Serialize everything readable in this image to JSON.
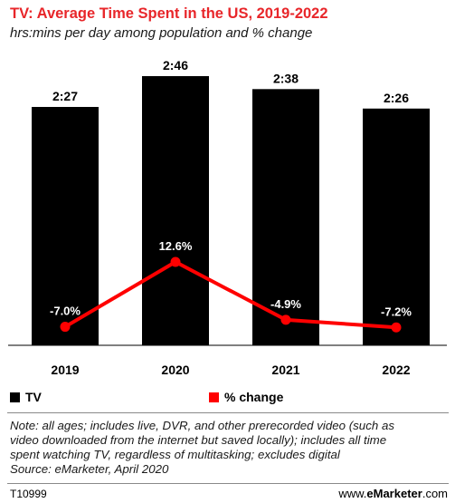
{
  "title": "TV: Average Time Spent in the US, 2019-2022",
  "subtitle": "hrs:mins per day among population and % change",
  "legend": {
    "tv": "TV",
    "change": "% change"
  },
  "note_lines": [
    "Note: all ages; includes live, DVR, and other prerecorded video (such as",
    "video downloaded from the internet but saved locally); includes all time",
    "spent watching TV, regardless of multitasking; excludes digital",
    "Source: eMarketer, April 2020"
  ],
  "footer": {
    "code": "T10999",
    "brand_prefix": "www.",
    "brand_main": "eMarketer",
    "brand_suffix": ".com"
  },
  "colors": {
    "bar": "#000000",
    "line": "#ff0000",
    "title": "#e8262a"
  },
  "chart_data": {
    "type": "bar",
    "categories": [
      "2019",
      "2020",
      "2021",
      "2022"
    ],
    "series": [
      {
        "name": "TV",
        "type": "bar",
        "values": [
          147,
          166,
          158,
          146
        ],
        "labels": [
          "2:27",
          "2:46",
          "2:38",
          "2:26"
        ]
      },
      {
        "name": "% change",
        "type": "line",
        "values": [
          -7.0,
          12.6,
          -4.9,
          -7.2
        ],
        "labels": [
          "-7.0%",
          "12.6%",
          "-4.9%",
          "-7.2%"
        ]
      }
    ],
    "grid": false,
    "legend_position": "bottom-left"
  }
}
